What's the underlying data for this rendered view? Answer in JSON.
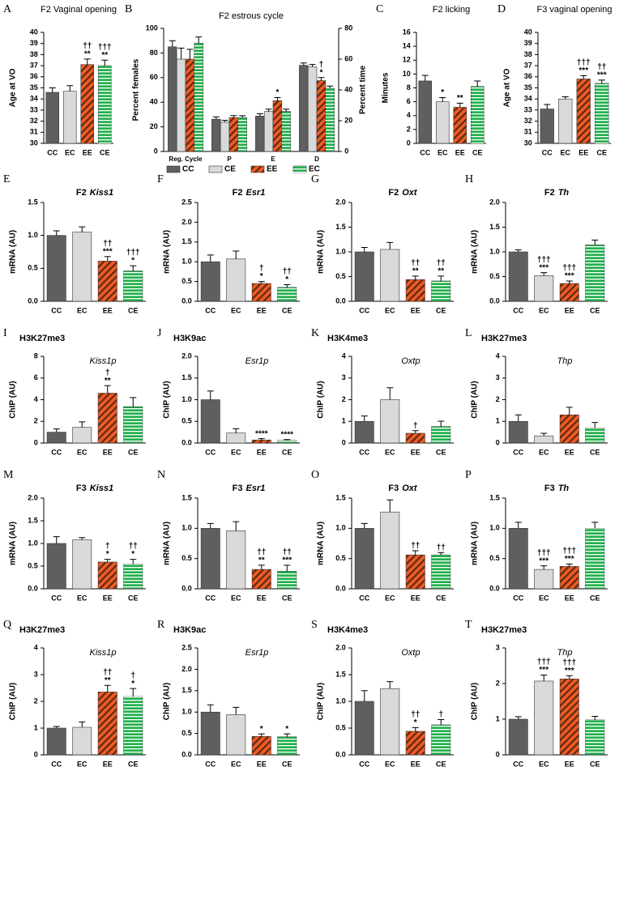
{
  "chart_data": [
    {
      "panel": "A",
      "type": "bar",
      "title": "F2 Vaginal opening",
      "ylabel": "Age at VO",
      "categories": [
        "CC",
        "EC",
        "EE",
        "CE"
      ],
      "values": [
        34.6,
        34.7,
        37.1,
        37.0
      ],
      "errors": [
        0.4,
        0.5,
        0.5,
        0.5
      ],
      "annotations": [
        null,
        null,
        [
          "††",
          "**"
        ],
        [
          "†††",
          "**"
        ]
      ],
      "colors": [
        "#5f5f5f",
        "#d9d9d9",
        "#f15a24",
        "#22b14c"
      ],
      "hatch": [
        null,
        null,
        "diagonal",
        "horizontal"
      ],
      "ylim": [
        30,
        40
      ],
      "yticks": [
        30,
        31,
        32,
        33,
        34,
        35,
        36,
        37,
        38,
        39,
        40
      ]
    },
    {
      "panel": "B",
      "type": "grouped_bar",
      "title": "F2 estrous cycle",
      "ylabel": "Percent females",
      "y2label": "Percent time",
      "categories": [
        "Reg. Cycle",
        "P",
        "E",
        "D"
      ],
      "category_axis": [
        "y",
        "y2",
        "y2",
        "y2"
      ],
      "series": [
        {
          "name": "CC",
          "color": "#5f5f5f",
          "hatch": null,
          "values": [
            85,
            21,
            23,
            56
          ],
          "errors": [
            5,
            1.5,
            1.5,
            1.5
          ]
        },
        {
          "name": "CE",
          "color": "#d9d9d9",
          "hatch": null,
          "values": [
            75,
            19,
            26,
            55
          ],
          "errors": [
            9,
            1.2,
            1.5,
            1.5
          ]
        },
        {
          "name": "EE",
          "color": "#f15a24",
          "hatch": "diagonal",
          "values": [
            75,
            22,
            33,
            46
          ],
          "errors": [
            8,
            1.3,
            2,
            2
          ],
          "annotations": [
            null,
            null,
            [
              "*"
            ],
            [
              "†",
              "*"
            ]
          ]
        },
        {
          "name": "EC",
          "color": "#22b14c",
          "hatch": "horizontal",
          "values": [
            88,
            22,
            26,
            41
          ],
          "errors": [
            5,
            1.2,
            1.5,
            1.5
          ]
        }
      ],
      "ylim": [
        0,
        100
      ],
      "yticks": [
        0,
        20,
        40,
        60,
        80,
        100
      ],
      "y2lim": [
        0,
        80
      ],
      "y2ticks": [
        0,
        20,
        40,
        60,
        80
      ]
    },
    {
      "panel": "C",
      "type": "bar",
      "title": "F2 licking",
      "ylabel": "Minutes",
      "categories": [
        "CC",
        "EC",
        "EE",
        "CE"
      ],
      "values": [
        9.0,
        6.0,
        5.2,
        8.2
      ],
      "errors": [
        0.8,
        0.6,
        0.6,
        0.8
      ],
      "annotations": [
        null,
        [
          "*"
        ],
        [
          "**"
        ],
        null
      ],
      "colors": [
        "#5f5f5f",
        "#d9d9d9",
        "#f15a24",
        "#22b14c"
      ],
      "hatch": [
        null,
        null,
        "diagonal",
        "horizontal"
      ],
      "ylim": [
        0,
        16
      ],
      "yticks": [
        0,
        2,
        4,
        6,
        8,
        10,
        12,
        14,
        16
      ]
    },
    {
      "panel": "D",
      "type": "bar",
      "title": "F3 vaginal opening",
      "ylabel": "Age at VO",
      "categories": [
        "CC",
        "EC",
        "EE",
        "CE"
      ],
      "values": [
        33.1,
        34.0,
        35.8,
        35.4
      ],
      "errors": [
        0.4,
        0.2,
        0.3,
        0.3
      ],
      "annotations": [
        null,
        null,
        [
          "†††",
          "***"
        ],
        [
          "††",
          "***"
        ]
      ],
      "colors": [
        "#5f5f5f",
        "#d9d9d9",
        "#f15a24",
        "#22b14c"
      ],
      "hatch": [
        null,
        null,
        "diagonal",
        "horizontal"
      ],
      "ylim": [
        30,
        40
      ],
      "yticks": [
        30,
        31,
        32,
        33,
        34,
        35,
        36,
        37,
        38,
        39,
        40
      ]
    },
    {
      "panel": "E",
      "type": "bar",
      "title": "F2",
      "gene": "Kiss1",
      "ylabel": "mRNA (AU)",
      "categories": [
        "CC",
        "EC",
        "EE",
        "CE"
      ],
      "values": [
        1.0,
        1.05,
        0.61,
        0.46
      ],
      "errors": [
        0.07,
        0.08,
        0.07,
        0.08
      ],
      "annotations": [
        null,
        null,
        [
          "††",
          "***"
        ],
        [
          "†††",
          "*"
        ]
      ],
      "colors": [
        "#5f5f5f",
        "#d9d9d9",
        "#f15a24",
        "#22b14c"
      ],
      "hatch": [
        null,
        null,
        "diagonal",
        "horizontal"
      ],
      "ylim": [
        0,
        1.5
      ],
      "yticks": [
        {
          "value": 0,
          "label": "0.0"
        },
        0.5,
        {
          "value": 1,
          "label": "1.0"
        },
        1.5
      ]
    },
    {
      "panel": "F",
      "type": "bar",
      "title": "F2",
      "gene": "Esr1",
      "ylabel": "mRNA (AU)",
      "categories": [
        "CC",
        "EC",
        "EE",
        "CE"
      ],
      "values": [
        1.0,
        1.07,
        0.45,
        0.35
      ],
      "errors": [
        0.17,
        0.2,
        0.05,
        0.07
      ],
      "annotations": [
        null,
        null,
        [
          "†",
          "*"
        ],
        [
          "††",
          "*"
        ]
      ],
      "colors": [
        "#5f5f5f",
        "#d9d9d9",
        "#f15a24",
        "#22b14c"
      ],
      "hatch": [
        null,
        null,
        "diagonal",
        "horizontal"
      ],
      "ylim": [
        0,
        2.5
      ],
      "yticks": [
        {
          "value": 0,
          "label": "0.0"
        },
        0.5,
        {
          "value": 1,
          "label": "1.0"
        },
        1.5,
        {
          "value": 2,
          "label": "2.0"
        },
        2.5
      ]
    },
    {
      "panel": "G",
      "type": "bar",
      "title": "F2",
      "gene": "Oxt",
      "ylabel": "mRNA (AU)",
      "categories": [
        "CC",
        "EC",
        "EE",
        "CE"
      ],
      "values": [
        1.0,
        1.05,
        0.44,
        0.41
      ],
      "errors": [
        0.09,
        0.14,
        0.07,
        0.1
      ],
      "annotations": [
        null,
        null,
        [
          "††",
          "**"
        ],
        [
          "††",
          "**"
        ]
      ],
      "colors": [
        "#5f5f5f",
        "#d9d9d9",
        "#f15a24",
        "#22b14c"
      ],
      "hatch": [
        null,
        null,
        "diagonal",
        "horizontal"
      ],
      "ylim": [
        0,
        2
      ],
      "yticks": [
        {
          "value": 0,
          "label": "0.0"
        },
        0.5,
        {
          "value": 1,
          "label": "1.0"
        },
        1.5,
        {
          "value": 2,
          "label": "2.0"
        }
      ]
    },
    {
      "panel": "H",
      "type": "bar",
      "title": "F2",
      "gene": "Th",
      "ylabel": "mRNA (AU)",
      "categories": [
        "CC",
        "EC",
        "EE",
        "CE"
      ],
      "values": [
        1.0,
        0.52,
        0.36,
        1.14
      ],
      "errors": [
        0.04,
        0.06,
        0.05,
        0.1
      ],
      "annotations": [
        null,
        [
          "†††",
          "***"
        ],
        [
          "†††",
          "***"
        ],
        null
      ],
      "colors": [
        "#5f5f5f",
        "#d9d9d9",
        "#f15a24",
        "#22b14c"
      ],
      "hatch": [
        null,
        null,
        "diagonal",
        "horizontal"
      ],
      "ylim": [
        0,
        2
      ],
      "yticks": [
        {
          "value": 0,
          "label": "0.0"
        },
        0.5,
        {
          "value": 1,
          "label": "1.0"
        },
        1.5,
        {
          "value": 2,
          "label": "2.0"
        }
      ]
    },
    {
      "panel": "I",
      "type": "bar",
      "title": "H3K27me3",
      "gene": "Kiss1p",
      "ylabel": "ChIP (AU)",
      "categories": [
        "CC",
        "EC",
        "EE",
        "CE"
      ],
      "values": [
        1.0,
        1.45,
        4.6,
        3.35
      ],
      "errors": [
        0.3,
        0.5,
        0.7,
        0.85
      ],
      "annotations": [
        null,
        null,
        [
          "†",
          "**"
        ],
        null
      ],
      "colors": [
        "#5f5f5f",
        "#d9d9d9",
        "#f15a24",
        "#22b14c"
      ],
      "hatch": [
        null,
        null,
        "diagonal",
        "horizontal"
      ],
      "ylim": [
        0,
        8
      ],
      "yticks": [
        0,
        2,
        4,
        6,
        8
      ]
    },
    {
      "panel": "J",
      "type": "bar",
      "title": "H3K9ac",
      "gene": "Esr1p",
      "ylabel": "ChIP (AU)",
      "categories": [
        "CC",
        "EC",
        "EE",
        "CE"
      ],
      "values": [
        1.0,
        0.23,
        0.07,
        0.06
      ],
      "errors": [
        0.2,
        0.1,
        0.03,
        0.02
      ],
      "annotations": [
        null,
        null,
        [
          "****"
        ],
        [
          "****"
        ]
      ],
      "colors": [
        "#5f5f5f",
        "#d9d9d9",
        "#f15a24",
        "#22b14c"
      ],
      "hatch": [
        null,
        null,
        "diagonal",
        "horizontal"
      ],
      "ylim": [
        0,
        2
      ],
      "yticks": [
        {
          "value": 0,
          "label": "0.0"
        },
        0.5,
        {
          "value": 1,
          "label": "1.0"
        },
        1.5,
        {
          "value": 2,
          "label": "2.0"
        }
      ]
    },
    {
      "panel": "K",
      "type": "bar",
      "title": "H3K4me3",
      "gene": "Oxtp",
      "ylabel": "ChIP (AU)",
      "categories": [
        "CC",
        "EC",
        "EE",
        "CE"
      ],
      "values": [
        1.0,
        2.0,
        0.45,
        0.76
      ],
      "errors": [
        0.25,
        0.55,
        0.12,
        0.25
      ],
      "annotations": [
        null,
        null,
        [
          "†"
        ],
        null
      ],
      "colors": [
        "#5f5f5f",
        "#d9d9d9",
        "#f15a24",
        "#22b14c"
      ],
      "hatch": [
        null,
        null,
        "diagonal",
        "horizontal"
      ],
      "ylim": [
        0,
        4
      ],
      "yticks": [
        0,
        1,
        2,
        3,
        4
      ]
    },
    {
      "panel": "L",
      "type": "bar",
      "title": "H3K27me3",
      "gene": "Thp",
      "ylabel": "ChIP (AU)",
      "categories": [
        "CC",
        "EC",
        "EE",
        "CE"
      ],
      "values": [
        1.0,
        0.33,
        1.3,
        0.7
      ],
      "errors": [
        0.3,
        0.12,
        0.35,
        0.25
      ],
      "annotations": [
        null,
        null,
        null,
        null
      ],
      "colors": [
        "#5f5f5f",
        "#d9d9d9",
        "#f15a24",
        "#22b14c"
      ],
      "hatch": [
        null,
        null,
        "diagonal",
        "horizontal"
      ],
      "ylim": [
        0,
        4
      ],
      "yticks": [
        0,
        1,
        2,
        3,
        4
      ]
    },
    {
      "panel": "M",
      "type": "bar",
      "title": "F3",
      "gene": "Kiss1",
      "ylabel": "mRNA (AU)",
      "categories": [
        "CC",
        "EC",
        "EE",
        "CE"
      ],
      "values": [
        1.0,
        1.08,
        0.59,
        0.55
      ],
      "errors": [
        0.15,
        0.05,
        0.06,
        0.1
      ],
      "annotations": [
        null,
        null,
        [
          "†",
          "*"
        ],
        [
          "††",
          "*"
        ]
      ],
      "colors": [
        "#5f5f5f",
        "#d9d9d9",
        "#f15a24",
        "#22b14c"
      ],
      "hatch": [
        null,
        null,
        "diagonal",
        "horizontal"
      ],
      "ylim": [
        0,
        2
      ],
      "yticks": [
        {
          "value": 0,
          "label": "0.0"
        },
        0.5,
        {
          "value": 1,
          "label": "1.0"
        },
        1.5,
        {
          "value": 2,
          "label": "2.0"
        }
      ]
    },
    {
      "panel": "N",
      "type": "bar",
      "title": "F3",
      "gene": "Esr1",
      "ylabel": "mRNA (AU)",
      "categories": [
        "CC",
        "EC",
        "EE",
        "CE"
      ],
      "values": [
        1.0,
        0.96,
        0.32,
        0.29
      ],
      "errors": [
        0.08,
        0.15,
        0.07,
        0.1
      ],
      "annotations": [
        null,
        null,
        [
          "††",
          "**"
        ],
        [
          "††",
          "***"
        ]
      ],
      "colors": [
        "#5f5f5f",
        "#d9d9d9",
        "#f15a24",
        "#22b14c"
      ],
      "hatch": [
        null,
        null,
        "diagonal",
        "horizontal"
      ],
      "ylim": [
        0,
        1.5
      ],
      "yticks": [
        {
          "value": 0,
          "label": "0.0"
        },
        0.5,
        {
          "value": 1,
          "label": "1.0"
        },
        1.5
      ]
    },
    {
      "panel": "O",
      "type": "bar",
      "title": "F3",
      "gene": "Oxt",
      "ylabel": "mRNA (AU)",
      "categories": [
        "CC",
        "EC",
        "EE",
        "CE"
      ],
      "values": [
        1.0,
        1.27,
        0.56,
        0.56
      ],
      "errors": [
        0.08,
        0.2,
        0.07,
        0.04
      ],
      "annotations": [
        null,
        null,
        [
          "††"
        ],
        [
          "††"
        ]
      ],
      "colors": [
        "#5f5f5f",
        "#d9d9d9",
        "#f15a24",
        "#22b14c"
      ],
      "hatch": [
        null,
        null,
        "diagonal",
        "horizontal"
      ],
      "ylim": [
        0,
        1.5
      ],
      "yticks": [
        {
          "value": 0,
          "label": "0.0"
        },
        0.5,
        {
          "value": 1,
          "label": "1.0"
        },
        1.5
      ]
    },
    {
      "panel": "P",
      "type": "bar",
      "title": "F3",
      "gene": "Th",
      "ylabel": "mRNA (AU)",
      "categories": [
        "CC",
        "EC",
        "EE",
        "CE"
      ],
      "values": [
        1.0,
        0.32,
        0.37,
        1.0
      ],
      "errors": [
        0.1,
        0.06,
        0.04,
        0.1
      ],
      "annotations": [
        null,
        [
          "†††",
          "***"
        ],
        [
          "†††",
          "***"
        ],
        null
      ],
      "colors": [
        "#5f5f5f",
        "#d9d9d9",
        "#f15a24",
        "#22b14c"
      ],
      "hatch": [
        null,
        null,
        "diagonal",
        "horizontal"
      ],
      "ylim": [
        0,
        1.5
      ],
      "yticks": [
        {
          "value": 0,
          "label": "0.0"
        },
        0.5,
        {
          "value": 1,
          "label": "1.0"
        },
        1.5
      ]
    },
    {
      "panel": "Q",
      "type": "bar",
      "title": "H3K27me3",
      "gene": "Kiss1p",
      "ylabel": "ChIP (AU)",
      "categories": [
        "CC",
        "EC",
        "EE",
        "CE"
      ],
      "values": [
        1.0,
        1.03,
        2.35,
        2.18
      ],
      "errors": [
        0.06,
        0.2,
        0.25,
        0.3
      ],
      "annotations": [
        null,
        null,
        [
          "††",
          "**"
        ],
        [
          "†",
          "*"
        ]
      ],
      "colors": [
        "#5f5f5f",
        "#d9d9d9",
        "#f15a24",
        "#22b14c"
      ],
      "hatch": [
        null,
        null,
        "diagonal",
        "horizontal"
      ],
      "ylim": [
        0,
        4
      ],
      "yticks": [
        0,
        1,
        2,
        3,
        4
      ]
    },
    {
      "panel": "R",
      "type": "bar",
      "title": "H3K9ac",
      "gene": "Esr1p",
      "ylabel": "ChIP (AU)",
      "categories": [
        "CC",
        "EC",
        "EE",
        "CE"
      ],
      "values": [
        1.0,
        0.94,
        0.43,
        0.42
      ],
      "errors": [
        0.17,
        0.17,
        0.06,
        0.07
      ],
      "annotations": [
        null,
        null,
        [
          "*"
        ],
        [
          "*"
        ]
      ],
      "colors": [
        "#5f5f5f",
        "#d9d9d9",
        "#f15a24",
        "#22b14c"
      ],
      "hatch": [
        null,
        null,
        "diagonal",
        "horizontal"
      ],
      "ylim": [
        0,
        2.5
      ],
      "yticks": [
        {
          "value": 0,
          "label": "0.0"
        },
        0.5,
        {
          "value": 1,
          "label": "1.0"
        },
        1.5,
        {
          "value": 2,
          "label": "2.0"
        },
        2.5
      ]
    },
    {
      "panel": "S",
      "type": "bar",
      "title": "H3K4me3",
      "gene": "Oxtp",
      "ylabel": "ChIP (AU)",
      "categories": [
        "CC",
        "EC",
        "EE",
        "CE"
      ],
      "values": [
        1.0,
        1.24,
        0.44,
        0.56
      ],
      "errors": [
        0.2,
        0.13,
        0.07,
        0.1
      ],
      "annotations": [
        null,
        null,
        [
          "††",
          "*"
        ],
        [
          "†"
        ]
      ],
      "colors": [
        "#5f5f5f",
        "#d9d9d9",
        "#f15a24",
        "#22b14c"
      ],
      "hatch": [
        null,
        null,
        "diagonal",
        "horizontal"
      ],
      "ylim": [
        0,
        2
      ],
      "yticks": [
        {
          "value": 0,
          "label": "0.0"
        },
        0.5,
        {
          "value": 1,
          "label": "1.0"
        },
        1.5,
        {
          "value": 2,
          "label": "2.0"
        }
      ]
    },
    {
      "panel": "T",
      "type": "bar",
      "title": "H3K27me3",
      "gene": "Thp",
      "ylabel": "ChIP (AU)",
      "categories": [
        "CC",
        "EC",
        "EE",
        "CE"
      ],
      "values": [
        1.0,
        2.07,
        2.13,
        0.98
      ],
      "errors": [
        0.07,
        0.17,
        0.09,
        0.1
      ],
      "annotations": [
        null,
        [
          "†††",
          "***"
        ],
        [
          "†††",
          "***"
        ],
        null
      ],
      "colors": [
        "#5f5f5f",
        "#d9d9d9",
        "#f15a24",
        "#22b14c"
      ],
      "hatch": [
        null,
        null,
        "diagonal",
        "horizontal"
      ],
      "ylim": [
        0,
        3
      ],
      "yticks": [
        0,
        1,
        2,
        3
      ]
    }
  ]
}
